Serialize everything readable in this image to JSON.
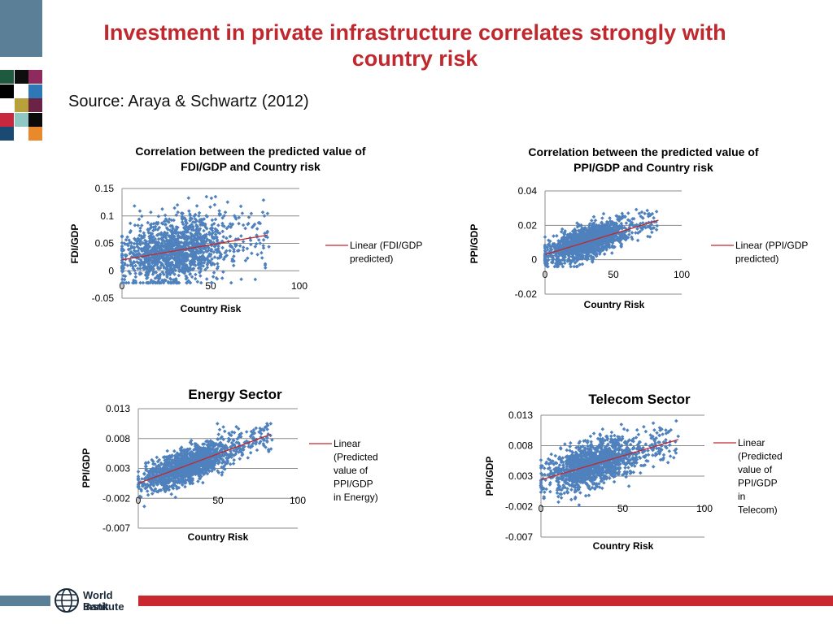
{
  "slide": {
    "title": "Investment in private infrastructure correlates strongly with country risk",
    "source": "Source: Araya & Schwartz (2012)",
    "footer_logo_line1": "World Bank",
    "footer_logo_line2": "Institute",
    "colors": {
      "title": "#c0282d",
      "points": "#4f81bd",
      "trend": "#c0282d",
      "footer_red": "#c8282e",
      "footer_blue": "#5b7f96"
    }
  },
  "chart_data": [
    {
      "type": "scatter",
      "title": "Correlation between the predicted value of FDI/GDP and Country risk",
      "xlabel": "Country Risk",
      "ylabel": "FDI/GDP",
      "xlim": [
        0,
        100
      ],
      "ylim": [
        -0.05,
        0.15
      ],
      "xticks": [
        0,
        50,
        100
      ],
      "yticks": [
        0.15,
        0.1,
        0.05,
        0,
        -0.05
      ],
      "ytick_labels": [
        "0.15",
        "0.1",
        "0.05",
        "0",
        "-0.05"
      ],
      "grid": true,
      "legend_position": "right",
      "legend_label": "Linear (FDI/GDP predicted)",
      "trendline": {
        "x": [
          0,
          82
        ],
        "y": [
          0.02,
          0.065
        ]
      },
      "point_cloud": {
        "n": 1400,
        "x_range": [
          0,
          83
        ],
        "x_center": 30,
        "y_min": -0.022,
        "y_max": 0.135,
        "noise": 0.03
      }
    },
    {
      "type": "scatter",
      "title": "Correlation between the predicted value of PPI/GDP and Country risk",
      "xlabel": "Country Risk",
      "ylabel": "PPI/GDP",
      "xlim": [
        0,
        100
      ],
      "ylim": [
        -0.02,
        0.04
      ],
      "xticks": [
        0,
        50,
        100
      ],
      "yticks": [
        0.04,
        0.02,
        0,
        -0.02
      ],
      "ytick_labels": [
        "0.04",
        "0.02",
        "0",
        "-0.02"
      ],
      "grid": true,
      "legend_position": "right",
      "legend_label": "Linear (PPI/GDP predicted)",
      "trendline": {
        "x": [
          0,
          83
        ],
        "y": [
          0.003,
          0.023
        ]
      },
      "point_cloud": {
        "n": 1400,
        "x_range": [
          0,
          83
        ],
        "x_center": 30,
        "y_min": -0.004,
        "y_max": 0.03,
        "noise": 0.0045
      }
    },
    {
      "type": "scatter",
      "title": "Energy Sector",
      "xlabel": "Country Risk",
      "ylabel": "PPI/GDP",
      "xlim": [
        0,
        100
      ],
      "ylim": [
        -0.007,
        0.013
      ],
      "xticks": [
        0,
        50,
        100
      ],
      "yticks": [
        0.013,
        0.008,
        0.003,
        -0.002,
        -0.007
      ],
      "ytick_labels": [
        "0.013",
        "0.008",
        "0.003",
        "-0.002",
        "-0.007"
      ],
      "grid": true,
      "legend_position": "right",
      "legend_label": "Linear (Predicted value of PPI/GDP in Energy)",
      "trendline": {
        "x": [
          0,
          83
        ],
        "y": [
          0.0005,
          0.0087
        ]
      },
      "point_cloud": {
        "n": 1400,
        "x_range": [
          0,
          84
        ],
        "x_center": 32,
        "y_min": -0.0045,
        "y_max": 0.0105,
        "noise": 0.0014
      }
    },
    {
      "type": "scatter",
      "title": "Telecom Sector",
      "xlabel": "Country Risk",
      "ylabel": "PPI/GDP",
      "xlim": [
        0,
        100
      ],
      "ylim": [
        -0.007,
        0.013
      ],
      "xticks": [
        0,
        50,
        100
      ],
      "yticks": [
        0.013,
        0.008,
        0.003,
        -0.002,
        -0.007
      ],
      "ytick_labels": [
        "0.013",
        "0.008",
        "0.003",
        "-0.002",
        "-0.007"
      ],
      "grid": true,
      "legend_position": "right",
      "legend_label": "Linear (Predicted value of PPI/GDP in Telecom)",
      "trendline": {
        "x": [
          0,
          84
        ],
        "y": [
          0.0024,
          0.009
        ]
      },
      "point_cloud": {
        "n": 1400,
        "x_range": [
          0,
          84
        ],
        "x_center": 32,
        "y_min": -0.005,
        "y_max": 0.0125,
        "noise": 0.0018
      }
    }
  ]
}
